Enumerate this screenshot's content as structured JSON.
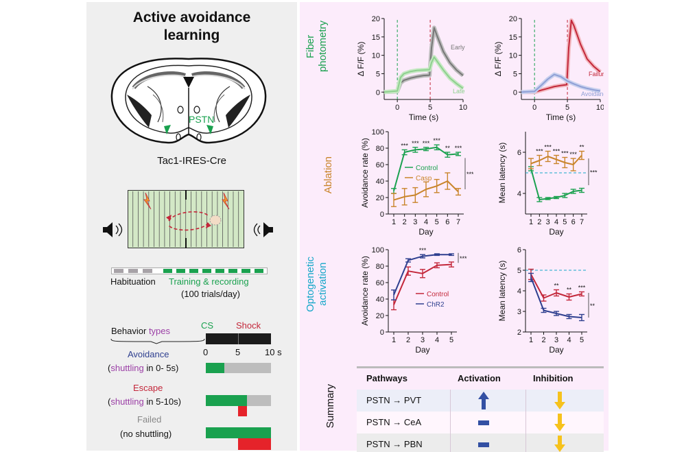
{
  "left": {
    "title_line1": "Active avoidance",
    "title_line2": "learning",
    "pstn_label": "PSTN",
    "mouse_line": "Tac1-IRES-Cre",
    "timeline": {
      "habituation_label": "Habituation",
      "training_label": "Training & recording",
      "trials_label": "(100 trials/day)"
    },
    "behavior": {
      "header_prefix": "Behavior",
      "header_suffix": "types",
      "cs_label": "CS",
      "shock_label": "Shock",
      "tick_0": "0",
      "tick_5": "5",
      "tick_10": "10 s",
      "avoidance_title": "Avoidance",
      "avoidance_sub_prefix": "(",
      "avoidance_sub_shuttling": "shuttling",
      "avoidance_sub_rest": " in 0- 5s)",
      "escape_title": "Escape",
      "escape_sub_prefix": "(",
      "escape_sub_shuttling": "shuttling",
      "escape_sub_rest": " in 5-10s)",
      "failed_title": "Failed",
      "failed_sub": "(no shuttling)"
    }
  },
  "rows": {
    "fiber_line1": "Fiber",
    "fiber_line2": "photometry",
    "ablation": "Ablation",
    "opto_line1": "Optogenetic",
    "opto_line2": "activation",
    "summary": "Summary"
  },
  "colors": {
    "green": "#1aa14f",
    "orange": "#c9842a",
    "red": "#c3273a",
    "navy": "#2e3f8f",
    "cyan": "#16a7c9",
    "purple": "#9b3fa6",
    "light_green": "#8ed08f",
    "light_red": "#e88a93",
    "light_blue": "#8f9fd6",
    "gray_trace": "#777777"
  },
  "chart_data": [
    {
      "type": "line",
      "panel": "fiber-left",
      "xlabel": "Time (s)",
      "ylabel": "Δ F/F (%)",
      "xlim": [
        -2,
        10
      ],
      "ylim": [
        -2,
        20
      ],
      "xticks": [
        "0",
        "5",
        "10"
      ],
      "yticks": [
        "0",
        "5",
        "10",
        "15",
        "20"
      ],
      "series": [
        {
          "name": "Early",
          "x": [
            -2,
            0,
            0.5,
            1,
            2,
            3,
            4,
            4.9,
            5.2,
            5.6,
            6,
            7,
            8,
            9,
            10
          ],
          "values": [
            0,
            0.2,
            2.5,
            3.2,
            3.8,
            4.2,
            4.5,
            4.6,
            12,
            17.5,
            15.5,
            11,
            8,
            6,
            4.5
          ]
        },
        {
          "name": "Late",
          "x": [
            -2,
            0,
            0.5,
            1,
            2,
            3,
            4,
            4.9,
            5.2,
            5.6,
            6,
            7,
            8,
            9,
            10
          ],
          "values": [
            0,
            0.3,
            4,
            5,
            5.6,
            5.9,
            6,
            6.1,
            8,
            9.5,
            8.5,
            6,
            3.8,
            2.3,
            1
          ]
        }
      ]
    },
    {
      "type": "line",
      "panel": "fiber-right",
      "xlabel": "Time (s)",
      "ylabel": "Δ F/F (%)",
      "xlim": [
        -2,
        10
      ],
      "ylim": [
        -2,
        20
      ],
      "xticks": [
        "0",
        "5",
        "10"
      ],
      "yticks": [
        "0",
        "5",
        "10",
        "15",
        "20"
      ],
      "series": [
        {
          "name": "Failure",
          "x": [
            -2,
            0,
            1,
            2,
            3,
            4,
            4.9,
            5.2,
            5.6,
            6,
            7,
            8,
            9,
            10
          ],
          "values": [
            0,
            0,
            0.5,
            1,
            1.5,
            1.8,
            2,
            12,
            19.5,
            18,
            13,
            9,
            7,
            5.5
          ]
        },
        {
          "name": "Avoidance",
          "x": [
            -2,
            0,
            1,
            2,
            3,
            4,
            5,
            6,
            7,
            8,
            9,
            10
          ],
          "values": [
            0,
            0.2,
            1.8,
            3.5,
            4.8,
            4.2,
            3,
            2.2,
            1.5,
            1,
            0.6,
            0.3
          ]
        }
      ]
    },
    {
      "type": "line",
      "panel": "ablation-rate",
      "xlabel": "Day",
      "ylabel": "Avoidance rate (%)",
      "ylim": [
        0,
        100
      ],
      "categories": [
        "1",
        "2",
        "3",
        "4",
        "5",
        "6",
        "7"
      ],
      "yticks": [
        "0",
        "20",
        "40",
        "60",
        "80",
        "100"
      ],
      "stars": [
        "***",
        "***",
        "***",
        "***",
        "**",
        "***"
      ],
      "group_stars": "***",
      "series": [
        {
          "name": "Control",
          "values": [
            28,
            75,
            78,
            79,
            81,
            72,
            73
          ],
          "err": [
            3,
            3,
            3,
            2,
            3,
            3,
            2
          ]
        },
        {
          "name": "Casp",
          "values": [
            17,
            21,
            23,
            30,
            34,
            40,
            27
          ],
          "err": [
            8,
            10,
            9,
            9,
            8,
            10,
            4
          ]
        }
      ]
    },
    {
      "type": "line",
      "panel": "ablation-latency",
      "xlabel": "Day",
      "ylabel": "Mean latency (s)",
      "ylim": [
        3,
        7
      ],
      "categories": [
        "1",
        "2",
        "3",
        "4",
        "5",
        "6",
        "7"
      ],
      "yticks": [
        "4",
        "6"
      ],
      "stars": [
        "***",
        "***",
        "***",
        "***",
        "***",
        "**",
        "***"
      ],
      "group_stars": "***",
      "series": [
        {
          "name": "Control",
          "values": [
            5.2,
            3.7,
            3.75,
            3.8,
            3.9,
            4.1,
            4.15
          ],
          "err": [
            0.1,
            0.1,
            0.05,
            0.05,
            0.1,
            0.1,
            0.1
          ]
        },
        {
          "name": "Casp",
          "values": [
            5.45,
            5.6,
            5.8,
            5.65,
            5.5,
            5.4,
            5.85
          ],
          "err": [
            0.25,
            0.25,
            0.25,
            0.2,
            0.25,
            0.3,
            0.2
          ]
        }
      ]
    },
    {
      "type": "line",
      "panel": "opto-rate",
      "xlabel": "Day",
      "ylabel": "Avoidance rate (%)",
      "ylim": [
        0,
        100
      ],
      "categories": [
        "1",
        "2",
        "3",
        "4",
        "5"
      ],
      "yticks": [
        "0",
        "20",
        "40",
        "60",
        "80",
        "100"
      ],
      "stars": [
        "***"
      ],
      "group_stars": "***",
      "series": [
        {
          "name": "Control",
          "values": [
            33,
            74,
            71,
            81,
            82
          ],
          "err": [
            6,
            5,
            5,
            3,
            3
          ]
        },
        {
          "name": "ChR2",
          "values": [
            45,
            87,
            92,
            94,
            94
          ],
          "err": [
            6,
            2,
            2,
            1,
            1
          ]
        }
      ]
    },
    {
      "type": "line",
      "panel": "opto-latency",
      "xlabel": "Day",
      "ylabel": "Mean latency (s)",
      "ylim": [
        2,
        6
      ],
      "categories": [
        "1",
        "2",
        "3",
        "4",
        "5"
      ],
      "yticks": [
        "2",
        "3",
        "4",
        "5",
        "6"
      ],
      "stars": [
        "**",
        "**",
        "***"
      ],
      "group_stars": "**",
      "series": [
        {
          "name": "Control",
          "values": [
            4.8,
            3.65,
            3.9,
            3.7,
            3.85
          ],
          "err": [
            0.25,
            0.15,
            0.15,
            0.15,
            0.1
          ]
        },
        {
          "name": "ChR2",
          "values": [
            4.65,
            3.05,
            2.9,
            2.75,
            2.7
          ],
          "err": [
            0.2,
            0.1,
            0.1,
            0.1,
            0.15
          ]
        }
      ]
    }
  ],
  "summary": {
    "col_pathways": "Pathways",
    "col_activation": "Activation",
    "col_inhibition": "Inhibition",
    "rows": [
      {
        "pathway": "PSTN → PVT",
        "activation": "up",
        "inhibition": "down"
      },
      {
        "pathway": "PSTN → CeA",
        "activation": "none",
        "inhibition": "down"
      },
      {
        "pathway": "PSTN → PBN",
        "activation": "none",
        "inhibition": "down"
      }
    ]
  }
}
